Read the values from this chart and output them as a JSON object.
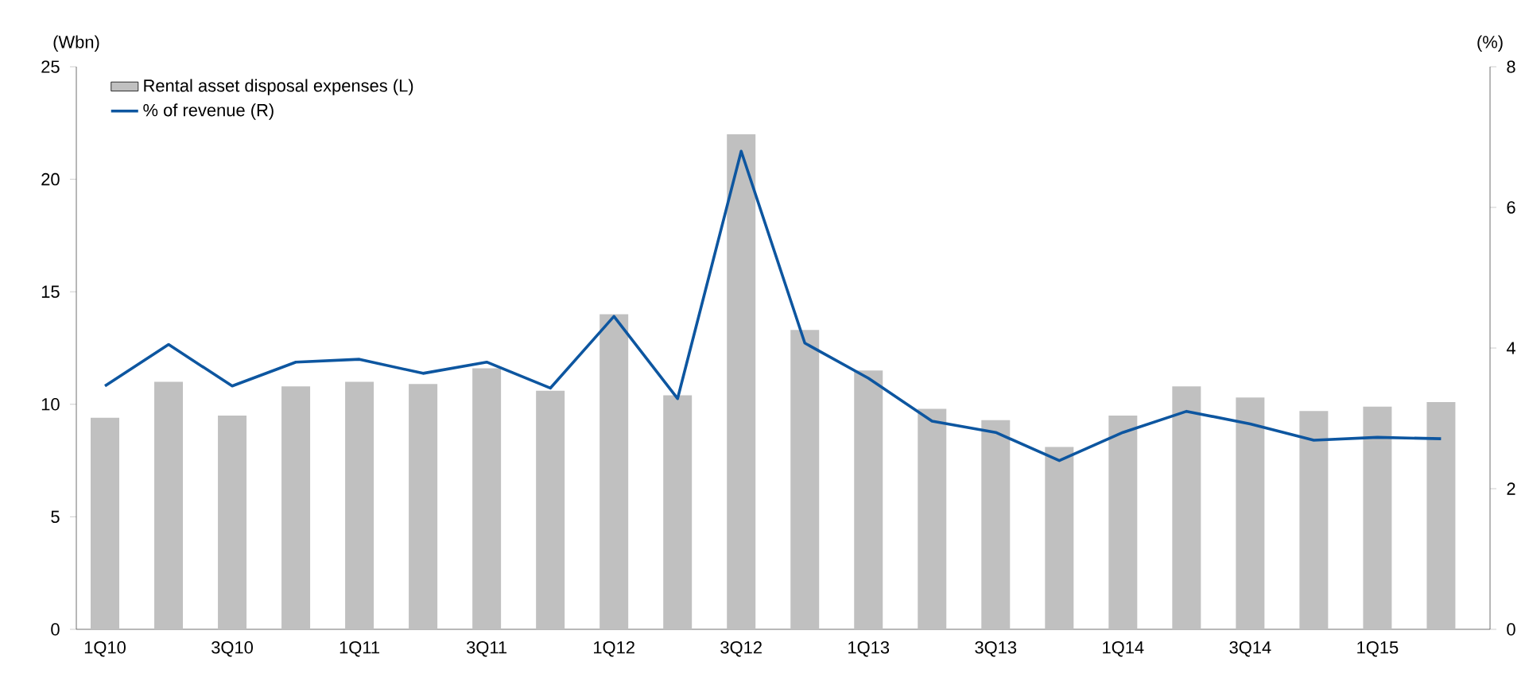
{
  "chart_data": {
    "type": "bar",
    "ylabel": "(Wbn)",
    "y2label": "(%)",
    "categories": [
      "1Q10",
      null,
      "3Q10",
      null,
      "1Q11",
      null,
      "3Q11",
      null,
      "1Q12",
      null,
      "3Q12",
      null,
      "1Q13",
      null,
      "3Q13",
      null,
      "1Q14",
      null,
      "3Q14",
      null,
      "1Q15",
      null
    ],
    "series": [
      {
        "name": "Rental asset disposal expenses (L)",
        "color": "#c0c0c0",
        "values": [
          9.4,
          11.0,
          9.5,
          10.8,
          11.0,
          10.9,
          11.6,
          10.6,
          14.0,
          10.4,
          22.0,
          13.3,
          11.5,
          9.8,
          9.3,
          8.1,
          9.5,
          10.8,
          10.3,
          9.7,
          9.9,
          10.1
        ]
      },
      {
        "name": "% of revenue (R)",
        "type": "line",
        "axis": "y2",
        "color": "#0d56a0",
        "values": [
          3.46,
          4.05,
          3.46,
          3.8,
          3.84,
          3.64,
          3.8,
          3.43,
          4.45,
          3.28,
          6.8,
          4.07,
          3.57,
          2.96,
          2.8,
          2.4,
          2.8,
          3.1,
          2.92,
          2.69,
          2.73,
          2.71
        ]
      }
    ],
    "ylim": [
      0,
      25
    ],
    "yticks": [
      0,
      5,
      10,
      15,
      20,
      25
    ],
    "y2lim": [
      0,
      8
    ],
    "y2ticks": [
      0,
      2,
      4,
      6,
      8
    ],
    "grid": false,
    "legend": "top left",
    "marker": "none",
    "line_style": "solid"
  }
}
